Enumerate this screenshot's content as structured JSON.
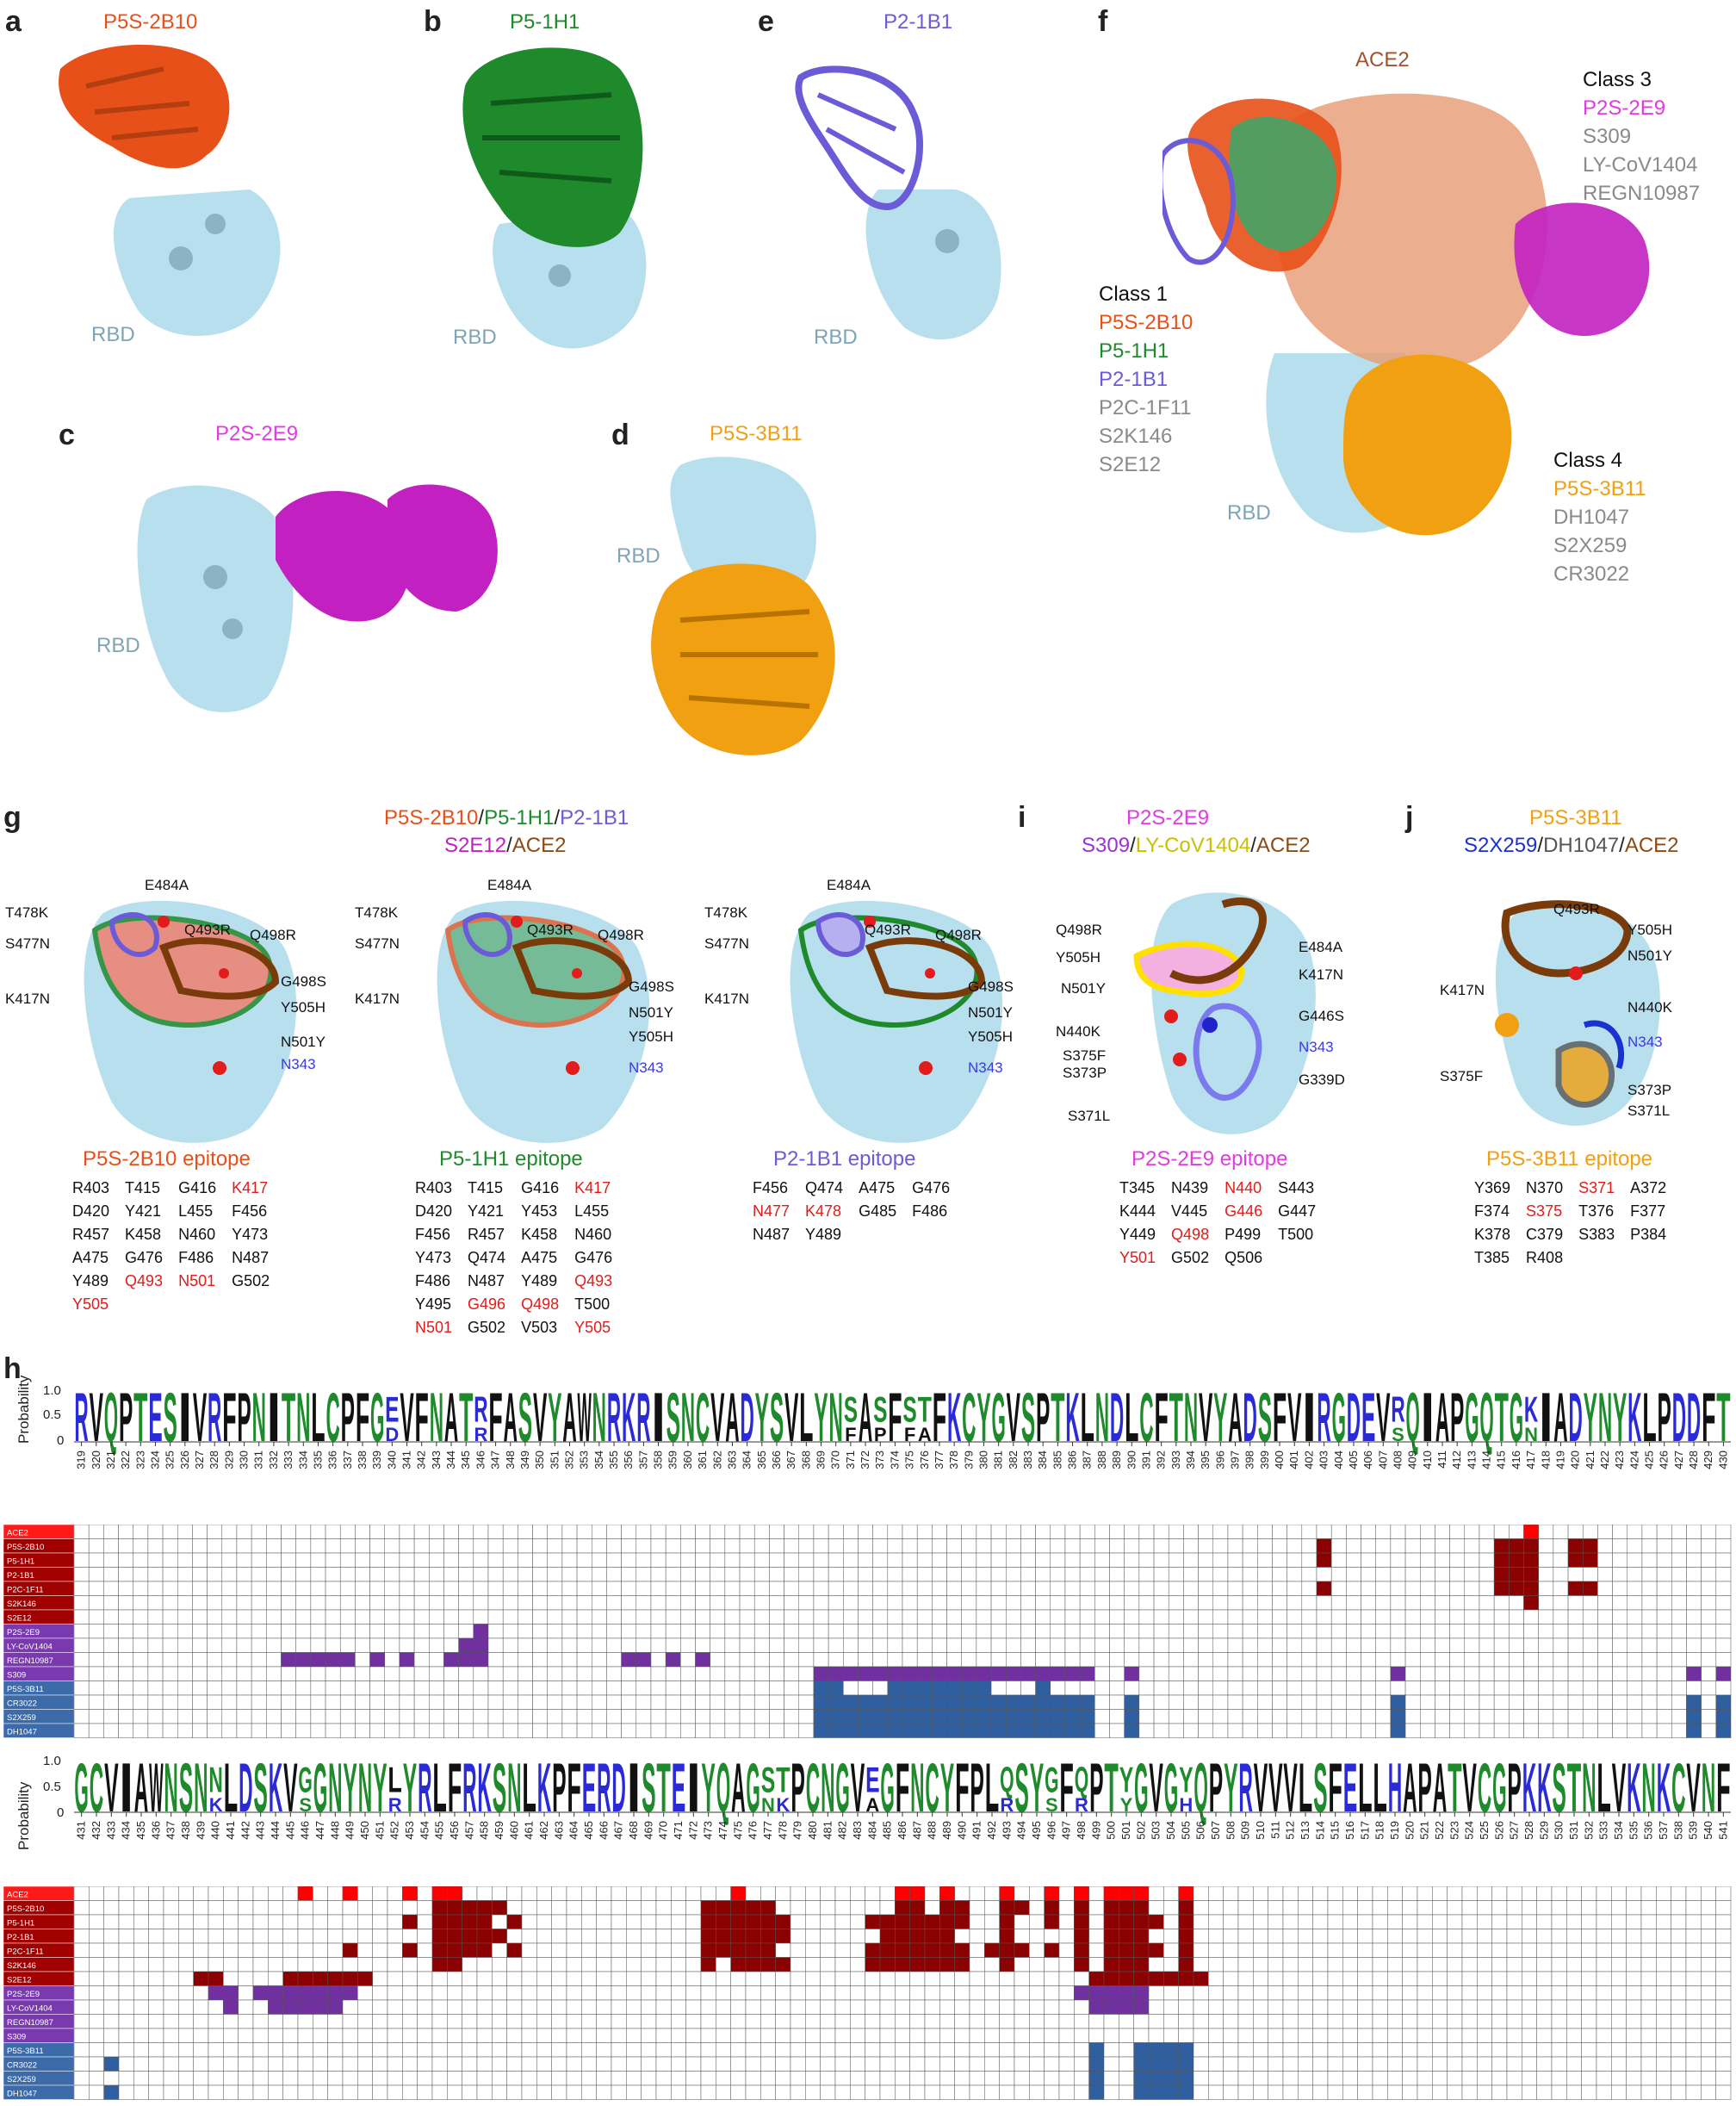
{
  "colors": {
    "p5s2b10": "#e8501a",
    "p51h1": "#1f8a2b",
    "p21b1": "#6b5bd6",
    "p2s2e9": "#e23be0",
    "p5s3b11": "#f0a010",
    "ace2": "#8a4b14",
    "rbd": "#b8dfee",
    "grey": "#8a8a8a",
    "class1": "#8b0000",
    "class3": "#7030a0",
    "class4": "#2f5f9f",
    "red": "#e21b1b",
    "blue": "#3a3ae0"
  },
  "panels": {
    "a": {
      "letter": "a",
      "title": "P5S-2B10",
      "rbd": "RBD"
    },
    "b": {
      "letter": "b",
      "title": "P5-1H1",
      "rbd": "RBD"
    },
    "e": {
      "letter": "e",
      "title": "P2-1B1",
      "rbd": "RBD"
    },
    "c": {
      "letter": "c",
      "title": "P2S-2E9",
      "rbd": "RBD"
    },
    "d": {
      "letter": "d",
      "title": "P5S-3B11",
      "rbd": "RBD"
    },
    "f": {
      "letter": "f",
      "ace2": "ACE2",
      "rbd": "RBD",
      "class1": {
        "head": "Class 1",
        "items": [
          "P5S-2B10",
          "P5-1H1",
          "P2-1B1",
          "P2C-1F11",
          "S2K146",
          "S2E12"
        ]
      },
      "class3": {
        "head": "Class 3",
        "items": [
          "P2S-2E9",
          "S309",
          "LY-CoV1404",
          "REGN10987"
        ]
      },
      "class4": {
        "head": "Class 4",
        "items": [
          "P5S-3B11",
          "DH1047",
          "S2X259",
          "CR3022"
        ]
      }
    },
    "g": {
      "letter": "g",
      "t1": "P5S-2B10",
      "t2": "P5-1H1",
      "t3": "P2-1B1",
      "t4": "S2E12",
      "t5": "ACE2",
      "sep": "/"
    },
    "i": {
      "letter": "i",
      "t1": "P2S-2E9",
      "t2": "S309",
      "t3": "LY-CoV1404",
      "t4": "ACE2",
      "sep": "/"
    },
    "j": {
      "letter": "j",
      "t1": "P5S-3B11",
      "t2": "S2X259",
      "t3": "DH1047",
      "t4": "ACE2",
      "sep": "/"
    },
    "h": {
      "letter": "h"
    }
  },
  "mutations_g": {
    "T478K": "T478K",
    "E484A": "E484A",
    "S477N": "S477N",
    "Q493R": "Q493R",
    "Q498R": "Q498R",
    "G498S": "G498S",
    "K417N": "K417N",
    "Y505H": "Y505H",
    "N501Y": "N501Y",
    "N343": "N343"
  },
  "mutations_i": {
    "Q498R": "Q498R",
    "Y505H": "Y505H",
    "N501Y": "N501Y",
    "E484A": "E484A",
    "K417N": "K417N",
    "G446S": "G446S",
    "N440K": "N440K",
    "N343": "N343",
    "S375F": "S375F",
    "S373P": "S373P",
    "G339D": "G339D",
    "S371L": "S371L"
  },
  "mutations_j": {
    "Q493R": "Q493R",
    "Y505H": "Y505H",
    "N501Y": "N501Y",
    "K417N": "K417N",
    "N440K": "N440K",
    "N343": "N343",
    "S375F": "S375F",
    "S373P": "S373P",
    "S371L": "S371L"
  },
  "epitopes": {
    "p5s2b10": {
      "title": "P5S-2B10 epitope",
      "cells": [
        [
          "R403",
          "k"
        ],
        [
          "T415",
          "k"
        ],
        [
          "G416",
          "k"
        ],
        [
          "K417",
          "r"
        ],
        [
          "D420",
          "k"
        ],
        [
          "Y421",
          "k"
        ],
        [
          "L455",
          "k"
        ],
        [
          "F456",
          "k"
        ],
        [
          "R457",
          "k"
        ],
        [
          "K458",
          "k"
        ],
        [
          "N460",
          "k"
        ],
        [
          "Y473",
          "k"
        ],
        [
          "A475",
          "k"
        ],
        [
          "G476",
          "k"
        ],
        [
          "F486",
          "k"
        ],
        [
          "N487",
          "k"
        ],
        [
          "Y489",
          "k"
        ],
        [
          "Q493",
          "r"
        ],
        [
          "N501",
          "r"
        ],
        [
          "G502",
          "k"
        ],
        [
          "Y505",
          "r"
        ]
      ]
    },
    "p51h1": {
      "title": "P5-1H1 epitope",
      "cells": [
        [
          "R403",
          "k"
        ],
        [
          "T415",
          "k"
        ],
        [
          "G416",
          "k"
        ],
        [
          "K417",
          "r"
        ],
        [
          "D420",
          "k"
        ],
        [
          "Y421",
          "k"
        ],
        [
          "Y453",
          "k"
        ],
        [
          "L455",
          "k"
        ],
        [
          "F456",
          "k"
        ],
        [
          "R457",
          "k"
        ],
        [
          "K458",
          "k"
        ],
        [
          "N460",
          "k"
        ],
        [
          "Y473",
          "k"
        ],
        [
          "Q474",
          "k"
        ],
        [
          "A475",
          "k"
        ],
        [
          "G476",
          "k"
        ],
        [
          "F486",
          "k"
        ],
        [
          "N487",
          "k"
        ],
        [
          "Y489",
          "k"
        ],
        [
          "Q493",
          "r"
        ],
        [
          "Y495",
          "k"
        ],
        [
          "G496",
          "r"
        ],
        [
          "Q498",
          "r"
        ],
        [
          "T500",
          "k"
        ],
        [
          "N501",
          "r"
        ],
        [
          "G502",
          "k"
        ],
        [
          "V503",
          "k"
        ],
        [
          "Y505",
          "r"
        ]
      ]
    },
    "p21b1": {
      "title": "P2-1B1 epitope",
      "cells": [
        [
          "F456",
          "k"
        ],
        [
          "Q474",
          "k"
        ],
        [
          "A475",
          "k"
        ],
        [
          "G476",
          "k"
        ],
        [
          "N477",
          "r"
        ],
        [
          "K478",
          "r"
        ],
        [
          "G485",
          "k"
        ],
        [
          "F486",
          "k"
        ],
        [
          "N487",
          "k"
        ],
        [
          "Y489",
          "k"
        ]
      ]
    },
    "p2s2e9": {
      "title": "P2S-2E9 epitope",
      "cells": [
        [
          "T345",
          "k"
        ],
        [
          "N439",
          "k"
        ],
        [
          "N440",
          "r"
        ],
        [
          "S443",
          "k"
        ],
        [
          "K444",
          "k"
        ],
        [
          "V445",
          "k"
        ],
        [
          "G446",
          "r"
        ],
        [
          "G447",
          "k"
        ],
        [
          "Y449",
          "k"
        ],
        [
          "Q498",
          "r"
        ],
        [
          "P499",
          "k"
        ],
        [
          "T500",
          "k"
        ],
        [
          "Y501",
          "r"
        ],
        [
          "G502",
          "k"
        ],
        [
          "Q506",
          "k"
        ]
      ]
    },
    "p5s3b11": {
      "title": "P5S-3B11 epitope",
      "cells": [
        [
          "Y369",
          "k"
        ],
        [
          "N370",
          "k"
        ],
        [
          "S371",
          "r"
        ],
        [
          "A372",
          "k"
        ],
        [
          "F374",
          "k"
        ],
        [
          "S375",
          "r"
        ],
        [
          "T376",
          "k"
        ],
        [
          "F377",
          "k"
        ],
        [
          "K378",
          "k"
        ],
        [
          "C379",
          "k"
        ],
        [
          "S383",
          "k"
        ],
        [
          "P384",
          "k"
        ],
        [
          "T385",
          "k"
        ],
        [
          "R408",
          "k"
        ]
      ]
    }
  },
  "logo": {
    "ylabel": "Probability",
    "yticks": [
      "1.0",
      "0.5",
      "0"
    ],
    "row1": {
      "start": 319,
      "end": 430,
      "seq": "RVQPTESIVRFPNITNLCPFGEVFNATRFASVYAWNRKRISNCVADYSVLYNSASFSTFKCYGVSPTKLNDLCFTNVYADSFVIRGDEVRQIAPGQTGKIADYNYKLPDDFT",
      "alts": {
        "340": "D",
        "346": "R",
        "371": "F",
        "373": "P",
        "375": "F",
        "376": "A",
        "408": "S",
        "417": "N"
      }
    },
    "row2": {
      "start": 431,
      "end": 541,
      "seq": "GCVIAWNSNNLDSKVGGNYNYLYRLFRKSNLKPFERDISTEIYQAGSTPCNGVEGFNCYFPLQSYGFQPTYGVGYQPYRVVVLSFELLHAPATVCGPKKSTNLVKNKCVNF",
      "alts": {
        "440": "K",
        "446": "S",
        "452": "R",
        "477": "N",
        "478": "K",
        "484": "A",
        "493": "R",
        "496": "S",
        "498": "R",
        "501": "Y",
        "505": "H"
      }
    }
  },
  "heatmap": {
    "rows": [
      "ACE2",
      "P5S-2B10",
      "P5-1H1",
      "P2-1B1",
      "P2C-1F11",
      "S2K146",
      "S2E12",
      "P2S-2E9",
      "LY-CoV1404",
      "REGN10987",
      "S309",
      "P5S-3B11",
      "CR3022",
      "S2X259",
      "DH1047"
    ],
    "rowclass": [
      "ace",
      "c1",
      "c1",
      "c1",
      "c1",
      "c1",
      "c1",
      "c3",
      "c3",
      "c3",
      "c3",
      "c4",
      "c4",
      "c4",
      "c4"
    ],
    "cells1": [
      [
        0,
        [
          417
        ]
      ],
      [
        1,
        [
          403,
          415,
          416,
          417,
          420,
          421
        ]
      ],
      [
        2,
        [
          403,
          415,
          416,
          417,
          420,
          421
        ]
      ],
      [
        3,
        [
          415,
          416,
          417
        ]
      ],
      [
        4,
        [
          403,
          415,
          416,
          417,
          420,
          421
        ]
      ],
      [
        5,
        [
          417
        ]
      ],
      [
        7,
        [
          346
        ]
      ],
      [
        8,
        [
          345,
          346
        ]
      ],
      [
        9,
        [
          333,
          334,
          335,
          336,
          337,
          339,
          341,
          344,
          345,
          346,
          356,
          357,
          359,
          361
        ]
      ],
      [
        10,
        [
          369,
          370,
          371,
          372,
          373,
          374,
          375,
          376,
          377,
          378,
          379,
          380,
          381,
          382,
          383,
          384,
          385,
          386,
          387,
          390,
          408,
          428,
          430
        ]
      ],
      [
        11,
        [
          369,
          370,
          374,
          375,
          376,
          377,
          378,
          379,
          380,
          384
        ]
      ],
      [
        12,
        [
          369,
          370,
          371,
          372,
          373,
          374,
          375,
          376,
          377,
          378,
          379,
          380,
          381,
          382,
          383,
          384,
          385,
          386,
          387,
          390,
          408,
          428,
          430
        ]
      ],
      [
        13,
        [
          369,
          370,
          371,
          372,
          373,
          374,
          375,
          376,
          377,
          378,
          379,
          380,
          381,
          382,
          383,
          384,
          385,
          386,
          387,
          390,
          408,
          428,
          430
        ]
      ],
      [
        14,
        [
          369,
          370,
          371,
          372,
          373,
          374,
          375,
          376,
          377,
          378,
          379,
          380,
          381,
          382,
          383,
          384,
          385,
          386,
          387,
          390,
          408,
          428,
          430
        ]
      ]
    ],
    "cells2": [
      [
        0,
        [
          446,
          449,
          453,
          455,
          456,
          475,
          486,
          487,
          489,
          493,
          496,
          498,
          500,
          501,
          502,
          505
        ]
      ],
      [
        1,
        [
          455,
          456,
          457,
          458,
          459,
          473,
          474,
          475,
          476,
          477,
          486,
          487,
          489,
          490,
          493,
          494,
          496,
          498,
          500,
          501,
          502,
          505
        ]
      ],
      [
        2,
        [
          453,
          455,
          456,
          457,
          458,
          460,
          473,
          474,
          475,
          476,
          477,
          478,
          484,
          485,
          486,
          487,
          488,
          489,
          490,
          493,
          496,
          498,
          500,
          501,
          502,
          503,
          505
        ]
      ],
      [
        3,
        [
          455,
          456,
          457,
          458,
          459,
          473,
          474,
          475,
          476,
          477,
          478,
          485,
          486,
          487,
          488,
          489,
          493,
          498,
          500,
          501,
          502,
          505
        ]
      ],
      [
        4,
        [
          449,
          453,
          455,
          456,
          457,
          458,
          460,
          473,
          474,
          475,
          476,
          477,
          484,
          485,
          486,
          487,
          488,
          489,
          490,
          492,
          493,
          494,
          496,
          498,
          500,
          501,
          502,
          503,
          505
        ]
      ],
      [
        5,
        [
          455,
          456,
          473,
          475,
          476,
          477,
          478,
          484,
          485,
          486,
          487,
          488,
          489,
          490,
          493,
          498,
          500,
          501,
          502,
          505
        ]
      ],
      [
        6,
        [
          439,
          440,
          445,
          446,
          447,
          448,
          449,
          450,
          499,
          500,
          501,
          502,
          503,
          504,
          505,
          506
        ]
      ],
      [
        7,
        [
          440,
          441,
          443,
          444,
          445,
          446,
          447,
          448,
          449,
          498,
          499,
          500,
          501,
          502
        ]
      ],
      [
        8,
        [
          441,
          444,
          445,
          446,
          447,
          448,
          499,
          500,
          501,
          502
        ]
      ],
      [
        11,
        [
          499,
          502,
          503,
          504,
          505
        ]
      ],
      [
        12,
        [
          433,
          499,
          502,
          503,
          504,
          505
        ]
      ],
      [
        13,
        [
          499,
          502,
          503,
          504,
          505
        ]
      ],
      [
        14,
        [
          433,
          499,
          502,
          503,
          504,
          505
        ]
      ]
    ]
  }
}
